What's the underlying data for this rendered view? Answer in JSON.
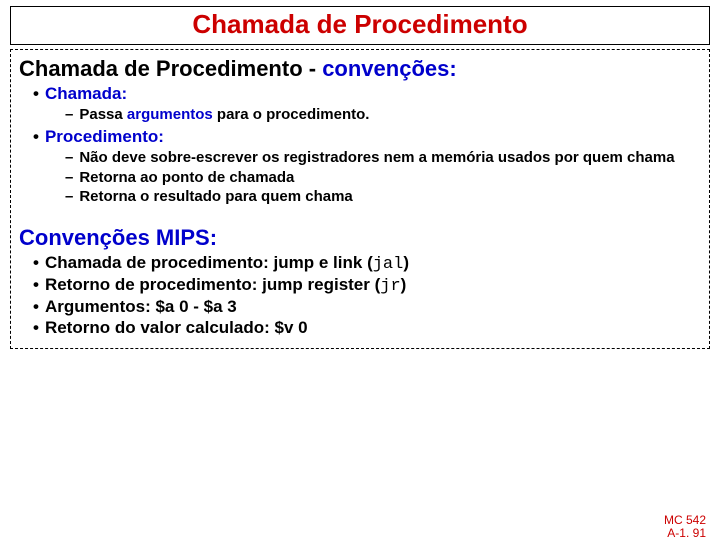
{
  "title": "Chamada de Procedimento",
  "section1": {
    "heading_black": "Chamada de Procedimento -  ",
    "heading_blue": "convenções:",
    "items": [
      {
        "label": "Chamada:",
        "sub": [
          {
            "prefix": "Passa  ",
            "highlight": "argumentos",
            "suffix": " para o procedimento."
          }
        ]
      },
      {
        "label": "Procedimento:",
        "sub": [
          {
            "text": "Não deve sobre-escrever os registradores nem a memória usados por quem chama"
          },
          {
            "text": "Retorna ao ponto de chamada"
          },
          {
            "text": "Retorna o resultado para quem chama"
          }
        ]
      }
    ]
  },
  "section2": {
    "heading": "Convenções MIPS:",
    "items": [
      {
        "pre": "Chamada de procedimento: jump e link (",
        "code": "jal",
        "post": ")"
      },
      {
        "pre": "Retorno de procedimento: jump register (",
        "code": "jr",
        "post": ")"
      },
      {
        "pre": "Argumentos: $a 0 - $a 3",
        "code": "",
        "post": ""
      },
      {
        "pre": "Retorno do valor calculado: $v 0",
        "code": "",
        "post": ""
      }
    ]
  },
  "footer": {
    "line1": "MC 542",
    "line2": "A-1. 91"
  },
  "colors": {
    "red": "#cc0000",
    "blue": "#0000cc",
    "black": "#000000",
    "bg": "#ffffff"
  }
}
